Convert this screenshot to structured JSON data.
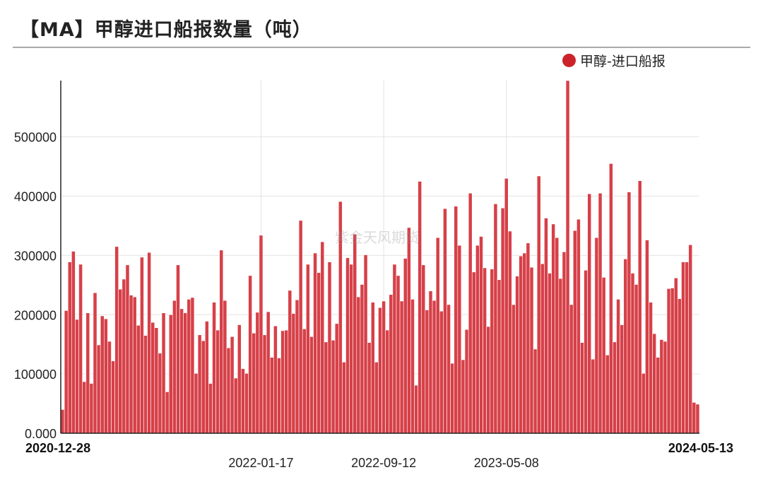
{
  "title": "【MA】甲醇进口船报数量（吨）",
  "watermark": "紫金天风期货",
  "colors": {
    "bar": "#d64048",
    "bar_stroke": "#ffffff",
    "legend_dot": "#cc2229",
    "grid": "#e3e3e3"
  },
  "chart_data": {
    "type": "bar",
    "title": "【MA】甲醇进口船报数量（吨）",
    "legend": [
      "甲醇-进口船报"
    ],
    "legend_position": "top-right",
    "grid": true,
    "ylim": [
      0,
      595000
    ],
    "yticks": [
      0,
      100000,
      200000,
      300000,
      400000,
      500000
    ],
    "ytick_labels": [
      "0.000",
      "100000",
      "200000",
      "300000",
      "400000",
      "500000"
    ],
    "x_start": "2020-12-28",
    "x_end": "2024-05-13",
    "xticks": [
      "2022-01-17",
      "2022-09-12",
      "2023-05-08"
    ],
    "series": [
      {
        "name": "甲醇-进口船报",
        "values": [
          40000,
          207000,
          289000,
          307000,
          192000,
          285000,
          87000,
          203000,
          84000,
          237000,
          149000,
          198000,
          193000,
          155000,
          122000,
          315000,
          243000,
          260000,
          284000,
          233000,
          230000,
          182000,
          297000,
          165000,
          305000,
          187000,
          178000,
          135000,
          203000,
          70000,
          200000,
          224000,
          284000,
          210000,
          203000,
          226000,
          229000,
          101000,
          166000,
          156000,
          189000,
          84000,
          221000,
          174000,
          309000,
          224000,
          144000,
          163000,
          93000,
          183000,
          109000,
          101000,
          266000,
          169000,
          204000,
          334000,
          166000,
          205000,
          128000,
          181000,
          127000,
          173000,
          174000,
          241000,
          202000,
          225000,
          359000,
          176000,
          285000,
          163000,
          304000,
          271000,
          323000,
          154000,
          289000,
          157000,
          185000,
          391000,
          120000,
          296000,
          285000,
          336000,
          230000,
          251000,
          301000,
          153000,
          221000,
          120000,
          212000,
          223000,
          174000,
          234000,
          285000,
          266000,
          223000,
          295000,
          347000,
          226000,
          81000,
          425000,
          284000,
          208000,
          240000,
          224000,
          330000,
          206000,
          379000,
          217000,
          118000,
          383000,
          317000,
          124000,
          175000,
          405000,
          272000,
          317000,
          332000,
          279000,
          180000,
          277000,
          387000,
          259000,
          380000,
          430000,
          341000,
          217000,
          265000,
          299000,
          304000,
          321000,
          280000,
          142000,
          434000,
          286000,
          363000,
          270000,
          353000,
          330000,
          261000,
          306000,
          595000,
          217000,
          342000,
          361000,
          153000,
          275000,
          404000,
          125000,
          330000,
          405000,
          263000,
          132000,
          455000,
          154000,
          226000,
          183000,
          294000,
          407000,
          270000,
          251000,
          426000,
          101000,
          326000,
          221000,
          168000,
          128000,
          158000,
          155000,
          244000,
          245000,
          262000,
          227000,
          289000,
          289000,
          318000,
          52000,
          49000
        ]
      }
    ]
  }
}
